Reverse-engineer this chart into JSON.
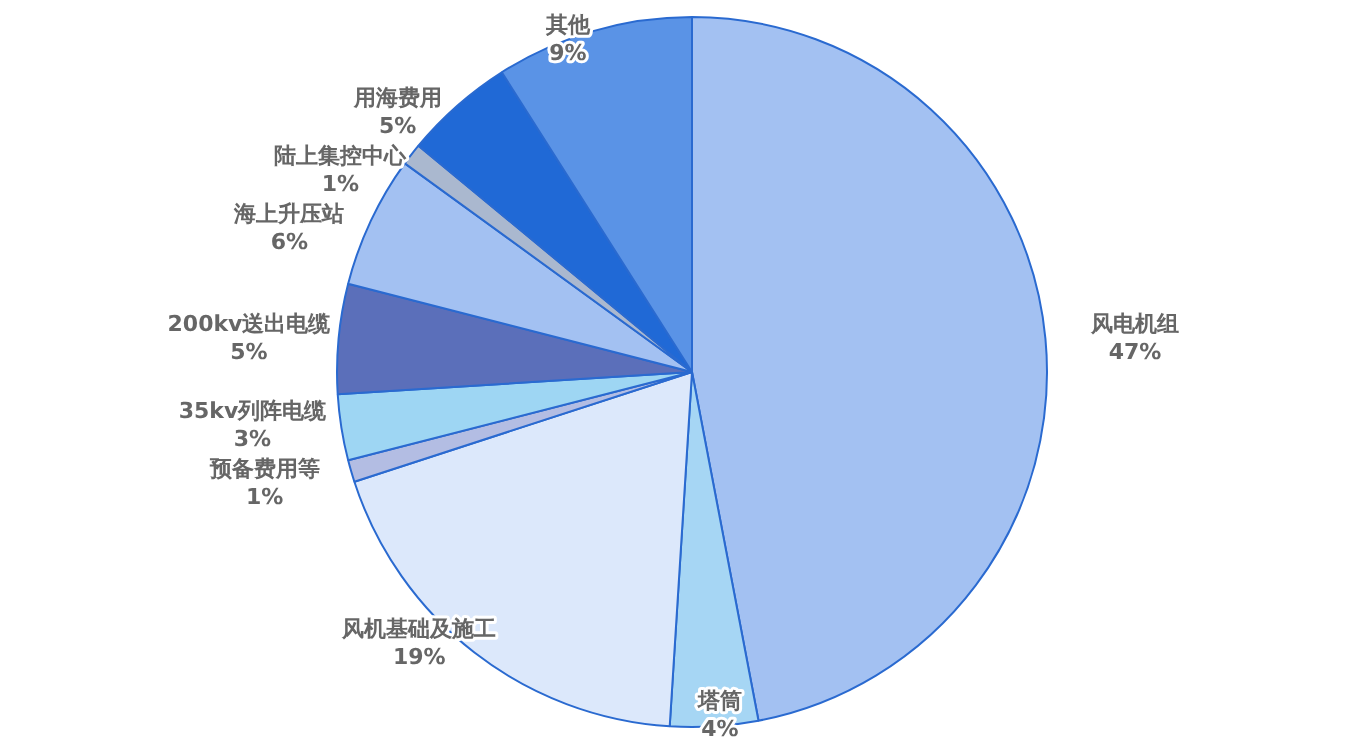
{
  "chart_data": {
    "type": "pie",
    "categories": [
      "风电机组",
      "塔筒",
      "风机基础及施工",
      "预备费用等",
      "35kv列阵电缆",
      "200kv送出电缆",
      "海上升压站",
      "陆上集控中心",
      "用海费用",
      "其他"
    ],
    "values": [
      47,
      4,
      19,
      1,
      3,
      5,
      6,
      1,
      5,
      9
    ],
    "value_labels": [
      "47%",
      "4%",
      "19%",
      "1%",
      "3%",
      "5%",
      "6%",
      "1%",
      "5%",
      "9%"
    ],
    "colors": [
      "#a3c1f2",
      "#a6d6f4",
      "#dce8fb",
      "#b3bde3",
      "#9ed6f3",
      "#5b6fba",
      "#a3c1f2",
      "#aab8cf",
      "#2069d6",
      "#5a93e6"
    ],
    "legend": false
  }
}
